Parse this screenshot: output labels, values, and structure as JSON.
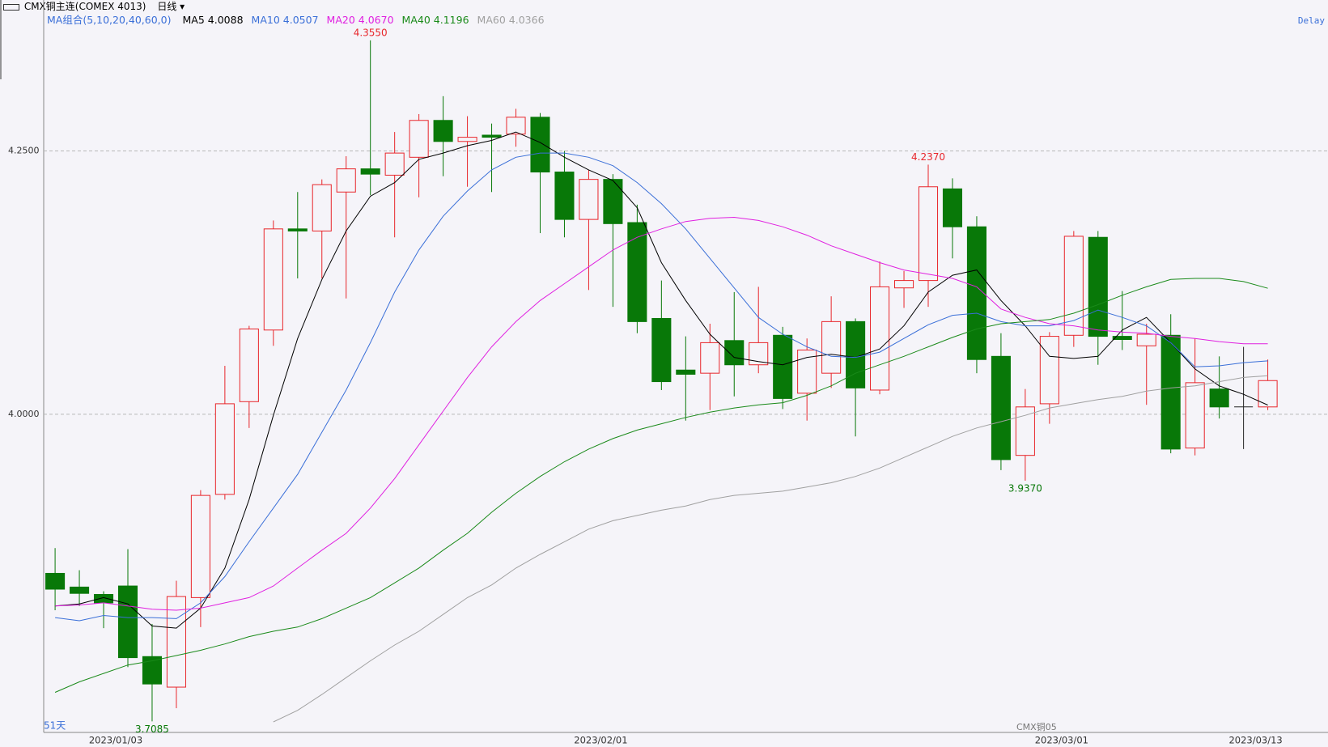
{
  "chart_data": {
    "type": "candlestick",
    "title": "CMX铜主连(COMEX 4013)",
    "period": "日线",
    "indicator": "MA组合(5,10,20,40,60,0)",
    "delay": "Delay",
    "count_label": "51天",
    "contract_label": "CMX铜05",
    "categories": [
      null,
      null,
      "2023/01/03",
      null,
      null,
      null,
      null,
      null,
      null,
      null,
      null,
      null,
      null,
      null,
      null,
      null,
      null,
      null,
      null,
      null,
      null,
      null,
      "2023/02/01",
      null,
      null,
      null,
      null,
      null,
      null,
      null,
      null,
      null,
      null,
      null,
      null,
      null,
      null,
      null,
      null,
      null,
      null,
      "2023/03/01",
      null,
      null,
      null,
      null,
      null,
      null,
      null,
      "2023/03/13",
      null
    ],
    "open": [
      3.849,
      3.836,
      3.829,
      3.837,
      3.77,
      3.741,
      3.826,
      3.924,
      4.012,
      4.08,
      4.176,
      4.174,
      4.211,
      4.233,
      4.227,
      4.244,
      4.279,
      4.259,
      4.265,
      4.266,
      4.282,
      4.23,
      4.185,
      4.223,
      4.182,
      4.091,
      4.042,
      4.039,
      4.07,
      4.047,
      4.075,
      4.02,
      4.039,
      4.088,
      4.023,
      4.12,
      4.127,
      4.214,
      4.178,
      4.055,
      3.961,
      4.01,
      4.075,
      4.168,
      4.074,
      4.065,
      4.075,
      3.968,
      4.024,
      4.007,
      4.007
    ],
    "high": [
      3.873,
      3.852,
      3.832,
      3.872,
      3.801,
      3.842,
      3.928,
      4.046,
      4.084,
      4.184,
      4.211,
      4.223,
      4.245,
      4.355,
      4.268,
      4.285,
      4.302,
      4.283,
      4.276,
      4.29,
      4.286,
      4.25,
      4.232,
      4.228,
      4.199,
      4.127,
      4.074,
      4.086,
      4.116,
      4.121,
      4.083,
      4.072,
      4.112,
      4.091,
      4.145,
      4.136,
      4.237,
      4.224,
      4.188,
      4.077,
      4.024,
      4.078,
      4.174,
      4.174,
      4.117,
      4.086,
      4.095,
      4.072,
      4.055,
      4.064,
      4.052
    ],
    "low": [
      3.814,
      3.818,
      3.797,
      3.76,
      3.7085,
      3.721,
      3.798,
      3.919,
      3.987,
      4.065,
      4.129,
      4.129,
      4.11,
      4.208,
      4.168,
      4.206,
      4.226,
      4.216,
      4.211,
      4.254,
      4.172,
      4.168,
      4.118,
      4.102,
      4.077,
      4.023,
      3.994,
      4.004,
      4.017,
      4.039,
      4.005,
      3.994,
      4.025,
      3.979,
      4.019,
      4.101,
      4.102,
      4.148,
      4.039,
      3.947,
      3.937,
      3.991,
      4.064,
      4.047,
      4.061,
      4.009,
      3.963,
      3.961,
      3.996,
      3.967,
      4.004
    ],
    "close": [
      3.834,
      3.83,
      3.821,
      3.769,
      3.744,
      3.827,
      3.923,
      4.01,
      4.081,
      4.176,
      4.174,
      4.218,
      4.233,
      4.228,
      4.248,
      4.279,
      4.259,
      4.263,
      4.263,
      4.282,
      4.23,
      4.185,
      4.223,
      4.181,
      4.088,
      4.031,
      4.038,
      4.068,
      4.047,
      4.068,
      4.015,
      4.061,
      4.088,
      4.025,
      4.121,
      4.127,
      4.216,
      4.178,
      4.052,
      3.957,
      4.007,
      4.074,
      4.169,
      4.074,
      4.071,
      4.076,
      3.967,
      4.03,
      4.007,
      4.007,
      4.032
    ],
    "up_color": "#e8262b",
    "down_color": "#087808",
    "flat_color": "#222222",
    "series": [
      {
        "name": "MA5",
        "color": "#000000",
        "value_label": "4.0088",
        "values": [
          3.818,
          3.82,
          3.826,
          3.82,
          3.799,
          3.797,
          3.816,
          3.854,
          3.919,
          3.999,
          4.072,
          4.128,
          4.174,
          4.207,
          4.22,
          4.242,
          4.248,
          4.255,
          4.26,
          4.268,
          4.258,
          4.244,
          4.232,
          4.222,
          4.196,
          4.144,
          4.108,
          4.076,
          4.054,
          4.05,
          4.047,
          4.054,
          4.057,
          4.054,
          4.062,
          4.084,
          4.116,
          4.132,
          4.137,
          4.108,
          4.084,
          4.055,
          4.053,
          4.055,
          4.08,
          4.092,
          4.068,
          4.043,
          4.027,
          4.019,
          4.0088
        ]
      },
      {
        "name": "MA10",
        "color": "#3a6fd8",
        "value_label": "4.0507",
        "values": [
          3.807,
          3.804,
          3.809,
          3.807,
          3.807,
          3.806,
          3.821,
          3.846,
          3.879,
          3.911,
          3.943,
          3.983,
          4.023,
          4.068,
          4.116,
          4.156,
          4.188,
          4.212,
          4.232,
          4.244,
          4.248,
          4.248,
          4.244,
          4.236,
          4.22,
          4.2,
          4.176,
          4.148,
          4.12,
          4.092,
          4.076,
          4.064,
          4.055,
          4.054,
          4.059,
          4.072,
          4.085,
          4.094,
          4.096,
          4.088,
          4.084,
          4.084,
          4.089,
          4.099,
          4.092,
          4.084,
          4.068,
          4.045,
          4.046,
          4.049,
          4.0507
        ]
      },
      {
        "name": "MA20",
        "color": "#e020e0",
        "value_label": "4.0670",
        "values": [
          3.818,
          3.819,
          3.821,
          3.818,
          3.815,
          3.814,
          3.816,
          3.821,
          3.826,
          3.837,
          3.854,
          3.871,
          3.887,
          3.911,
          3.939,
          3.971,
          4.003,
          4.035,
          4.064,
          4.088,
          4.108,
          4.124,
          4.14,
          4.156,
          4.168,
          4.176,
          4.183,
          4.186,
          4.187,
          4.184,
          4.178,
          4.17,
          4.16,
          4.152,
          4.144,
          4.137,
          4.133,
          4.129,
          4.121,
          4.1,
          4.092,
          4.086,
          4.084,
          4.08,
          4.078,
          4.077,
          4.074,
          4.072,
          4.069,
          4.067,
          4.067
        ]
      },
      {
        "name": "MA40",
        "color": "#1a8a1a",
        "value_label": "4.1196",
        "values": [
          3.736,
          3.746,
          3.754,
          3.762,
          3.766,
          3.771,
          3.776,
          3.782,
          3.789,
          3.794,
          3.798,
          3.806,
          3.816,
          3.826,
          3.84,
          3.854,
          3.871,
          3.887,
          3.907,
          3.925,
          3.941,
          3.955,
          3.967,
          3.977,
          3.985,
          3.991,
          3.997,
          4.002,
          4.006,
          4.009,
          4.011,
          4.018,
          4.027,
          4.039,
          4.047,
          4.055,
          4.064,
          4.073,
          4.081,
          4.086,
          4.088,
          4.09,
          4.096,
          4.104,
          4.113,
          4.121,
          4.128,
          4.129,
          4.129,
          4.126,
          4.1196
        ]
      },
      {
        "name": "MA60",
        "color": "#a0a0a0",
        "value_label": "4.0366",
        "values": [
          null,
          null,
          null,
          null,
          null,
          null,
          null,
          null,
          null,
          3.708,
          3.719,
          3.734,
          3.75,
          3.766,
          3.781,
          3.794,
          3.81,
          3.826,
          3.838,
          3.854,
          3.867,
          3.879,
          3.891,
          3.899,
          3.904,
          3.909,
          3.913,
          3.919,
          3.923,
          3.925,
          3.927,
          3.931,
          3.935,
          3.941,
          3.949,
          3.959,
          3.969,
          3.979,
          3.987,
          3.993,
          3.999,
          4.006,
          4.01,
          4.014,
          4.017,
          4.022,
          4.025,
          4.027,
          4.031,
          4.035,
          4.0366
        ]
      }
    ],
    "ylim": [
      3.698,
      4.381
    ],
    "yticks": [
      {
        "value": 4.25,
        "label": "4.2500"
      },
      {
        "value": 4,
        "label": "4.0000"
      }
    ],
    "grid": true,
    "annotations": [
      {
        "label": "4.3550",
        "value": 4.355
      },
      {
        "label": "4.2370",
        "value": 4.237
      },
      {
        "label": "3.9370",
        "value": 3.937
      },
      {
        "label": "3.7085",
        "value": 3.7085
      }
    ]
  }
}
